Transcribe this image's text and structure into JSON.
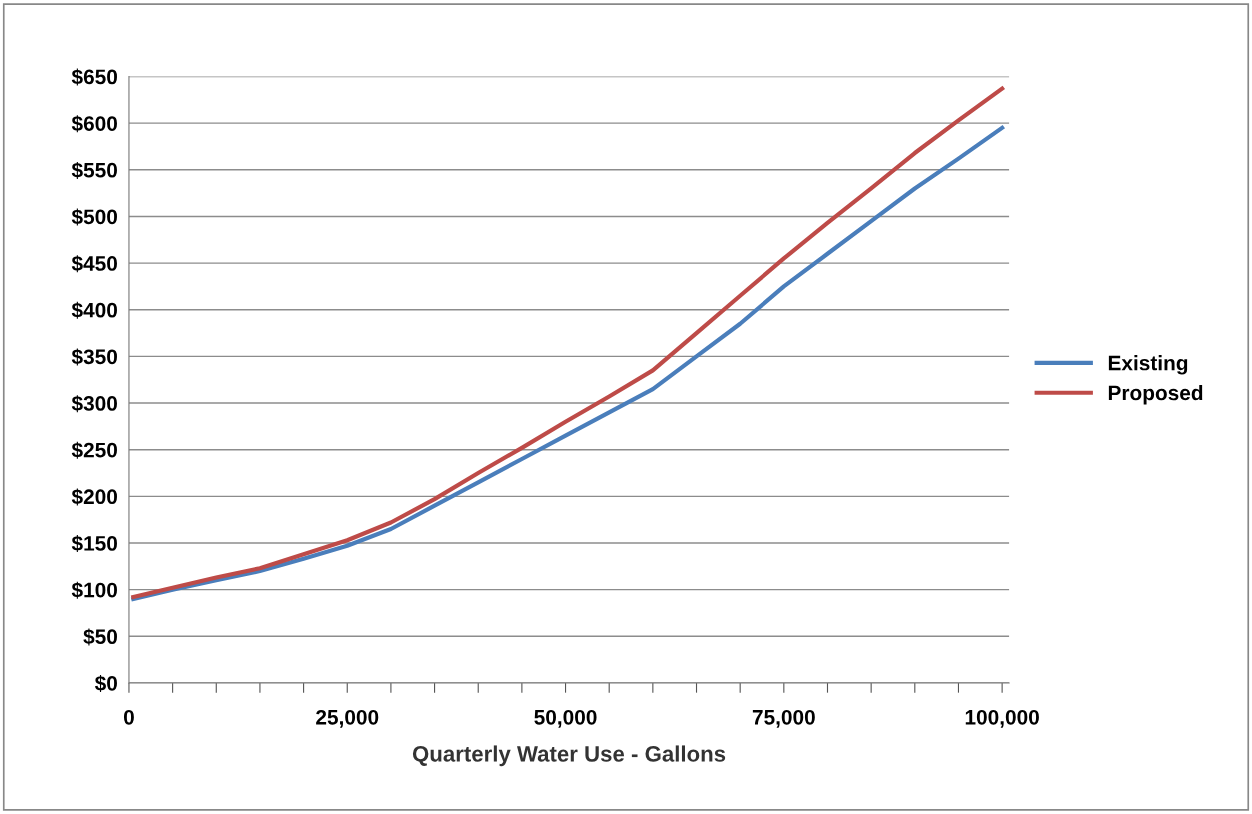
{
  "chart_data": {
    "type": "line",
    "xlabel": "Quarterly Water Use - Gallons",
    "x": [
      500,
      5000,
      10000,
      15000,
      20000,
      25000,
      30000,
      35000,
      40000,
      45000,
      50000,
      55000,
      60000,
      65000,
      70000,
      75000,
      80000,
      85000,
      90000,
      95000,
      100000
    ],
    "series": [
      {
        "name": "Existing",
        "color": "#4a7ebb",
        "values": [
          90,
          100,
          110,
          120,
          133,
          147,
          165,
          190,
          215,
          240,
          265,
          290,
          315,
          350,
          385,
          425,
          460,
          495,
          530,
          562,
          595
        ]
      },
      {
        "name": "Proposed",
        "color": "#be4b48",
        "values": [
          92,
          102,
          113,
          123,
          138,
          153,
          172,
          197,
          225,
          252,
          280,
          307,
          335,
          375,
          415,
          455,
          493,
          530,
          568,
          603,
          637
        ]
      }
    ],
    "xlim": [
      0,
      100800
    ],
    "xticks": [
      0,
      {
        "value": 5000,
        "label": null
      },
      {
        "value": 10000,
        "label": null
      },
      {
        "value": 15000,
        "label": null
      },
      {
        "value": 20000,
        "label": null
      },
      {
        "value": 25000,
        "label": "25,000"
      },
      {
        "value": 30000,
        "label": null
      },
      {
        "value": 35000,
        "label": null
      },
      {
        "value": 40000,
        "label": null
      },
      {
        "value": 45000,
        "label": null
      },
      {
        "value": 50000,
        "label": "50,000"
      },
      {
        "value": 55000,
        "label": null
      },
      {
        "value": 60000,
        "label": null
      },
      {
        "value": 65000,
        "label": null
      },
      {
        "value": 70000,
        "label": null
      },
      {
        "value": 75000,
        "label": "75,000"
      },
      {
        "value": 80000,
        "label": null
      },
      {
        "value": 85000,
        "label": null
      },
      {
        "value": 90000,
        "label": null
      },
      {
        "value": 95000,
        "label": null
      },
      {
        "value": 100000,
        "label": "100,000"
      }
    ],
    "ylim": [
      0,
      650
    ],
    "yticks": [
      {
        "value": 0,
        "label": "$0"
      },
      {
        "value": 50,
        "label": "$50"
      },
      {
        "value": 100,
        "label": "$100"
      },
      {
        "value": 150,
        "label": "$150"
      },
      {
        "value": 200,
        "label": "$200"
      },
      {
        "value": 250,
        "label": "$250"
      },
      {
        "value": 300,
        "label": "$300"
      },
      {
        "value": 350,
        "label": "$350"
      },
      {
        "value": 400,
        "label": "$400"
      },
      {
        "value": 450,
        "label": "$450"
      },
      {
        "value": 500,
        "label": "$500"
      },
      {
        "value": 550,
        "label": "$550"
      },
      {
        "value": 600,
        "label": "$600"
      },
      {
        "value": 650,
        "label": "$650"
      }
    ],
    "grid": "y",
    "legend": "right",
    "marker": "none",
    "line_style": "solid"
  }
}
